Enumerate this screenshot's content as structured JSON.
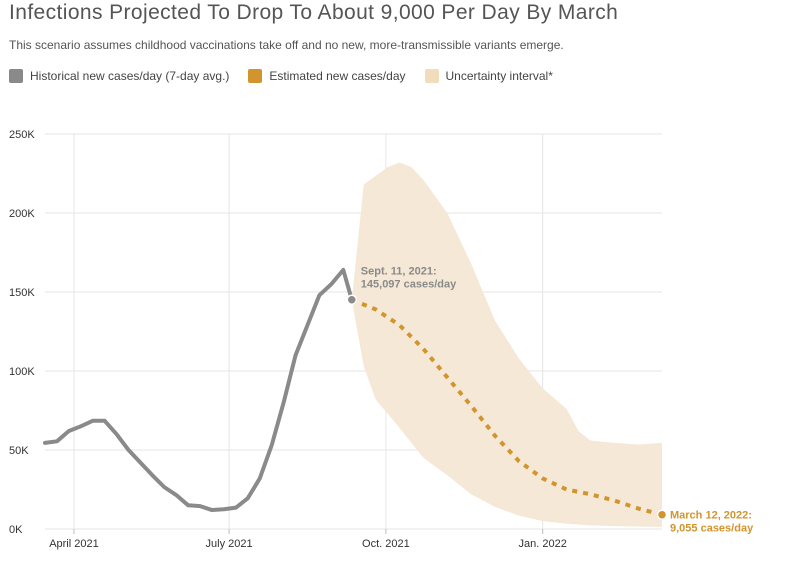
{
  "title": "Infections Projected To Drop To About 9,000 Per Day By March",
  "subtitle": "This scenario assumes childhood vaccinations take off and no new, more-transmissible variants emerge.",
  "legend": [
    {
      "label": "Historical new cases/day (7-day avg.)",
      "color": "#8a8a8a"
    },
    {
      "label": "Estimated new cases/day",
      "color": "#d2952d"
    },
    {
      "label": "Uncertainty interval*",
      "color": "#f1dcbb"
    }
  ],
  "chart_data": {
    "type": "line",
    "y_ticks": [
      0,
      50000,
      100000,
      150000,
      200000,
      250000
    ],
    "y_tick_labels": [
      "0K",
      "50K",
      "100K",
      "150K",
      "200K",
      "250K"
    ],
    "ylim": [
      0,
      250000
    ],
    "xlim": [
      "2021-03-15",
      "2022-03-12"
    ],
    "x_ticks": [
      "2021-04-01",
      "2021-07-01",
      "2021-10-01",
      "2022-01-01"
    ],
    "x_tick_labels": [
      "April 2021",
      "July 2021",
      "Oct. 2021",
      "Jan. 2022"
    ],
    "grid": true,
    "series": [
      {
        "name": "Historical new cases/day (7-day avg.)",
        "color": "#8a8a8a",
        "points": [
          [
            "2021-03-15",
            54500
          ],
          [
            "2021-03-22",
            55500
          ],
          [
            "2021-03-29",
            62000
          ],
          [
            "2021-04-05",
            65000
          ],
          [
            "2021-04-12",
            68500
          ],
          [
            "2021-04-19",
            68500
          ],
          [
            "2021-04-26",
            60000
          ],
          [
            "2021-05-03",
            50000
          ],
          [
            "2021-05-10",
            42000
          ],
          [
            "2021-05-17",
            34000
          ],
          [
            "2021-05-24",
            26500
          ],
          [
            "2021-05-31",
            21500
          ],
          [
            "2021-06-07",
            15000
          ],
          [
            "2021-06-14",
            14500
          ],
          [
            "2021-06-21",
            12000
          ],
          [
            "2021-06-28",
            12500
          ],
          [
            "2021-07-05",
            13500
          ],
          [
            "2021-07-12",
            19500
          ],
          [
            "2021-07-19",
            32000
          ],
          [
            "2021-07-26",
            53000
          ],
          [
            "2021-08-02",
            80000
          ],
          [
            "2021-08-09",
            110000
          ],
          [
            "2021-08-16",
            129000
          ],
          [
            "2021-08-23",
            148000
          ],
          [
            "2021-08-30",
            155000
          ],
          [
            "2021-09-06",
            164000
          ],
          [
            "2021-09-11",
            145097
          ]
        ]
      },
      {
        "name": "Estimated new cases/day",
        "color": "#d2952d",
        "points": [
          [
            "2021-09-11",
            145097
          ],
          [
            "2021-09-25",
            139000
          ],
          [
            "2021-10-09",
            129000
          ],
          [
            "2021-10-23",
            114000
          ],
          [
            "2021-11-06",
            96000
          ],
          [
            "2021-11-20",
            78000
          ],
          [
            "2021-12-04",
            59000
          ],
          [
            "2021-12-18",
            43000
          ],
          [
            "2022-01-01",
            32000
          ],
          [
            "2022-01-15",
            25000
          ],
          [
            "2022-01-29",
            22000
          ],
          [
            "2022-02-12",
            18000
          ],
          [
            "2022-02-26",
            13000
          ],
          [
            "2022-03-12",
            9055
          ]
        ]
      },
      {
        "name": "Uncertainty interval*",
        "color": "#f5e8d6",
        "upper": [
          [
            "2021-09-11",
            145097
          ],
          [
            "2021-09-18",
            218000
          ],
          [
            "2021-10-02",
            229000
          ],
          [
            "2021-10-09",
            232000
          ],
          [
            "2021-10-16",
            229000
          ],
          [
            "2021-10-23",
            221000
          ],
          [
            "2021-11-06",
            200000
          ],
          [
            "2021-11-20",
            168000
          ],
          [
            "2021-12-04",
            132000
          ],
          [
            "2021-12-18",
            108000
          ],
          [
            "2022-01-01",
            89000
          ],
          [
            "2022-01-15",
            76000
          ],
          [
            "2022-01-22",
            62000
          ],
          [
            "2022-01-29",
            56000
          ],
          [
            "2022-02-12",
            54500
          ],
          [
            "2022-02-26",
            53500
          ],
          [
            "2022-03-12",
            54500
          ]
        ],
        "lower": [
          [
            "2021-09-11",
            145097
          ],
          [
            "2021-09-18",
            103000
          ],
          [
            "2021-09-25",
            82000
          ],
          [
            "2021-10-09",
            64000
          ],
          [
            "2021-10-23",
            45000
          ],
          [
            "2021-11-06",
            34000
          ],
          [
            "2021-11-20",
            22000
          ],
          [
            "2021-12-04",
            14000
          ],
          [
            "2021-12-18",
            8500
          ],
          [
            "2022-01-01",
            5000
          ],
          [
            "2022-01-15",
            3300
          ],
          [
            "2022-01-29",
            2300
          ],
          [
            "2022-02-12",
            1800
          ],
          [
            "2022-03-12",
            1300
          ]
        ]
      }
    ],
    "annotations": [
      {
        "text": [
          "Sept. 11, 2021:",
          "145,097 cases/day"
        ],
        "date": "2021-09-11",
        "value": 145097,
        "color": "#8a8a8a",
        "marker_color": "#8a8a8a"
      },
      {
        "text": [
          "March 12, 2022:",
          "9,055 cases/day"
        ],
        "date": "2022-03-12",
        "value": 9055,
        "color": "#d2952d",
        "marker_color": "#d2952d"
      }
    ]
  }
}
